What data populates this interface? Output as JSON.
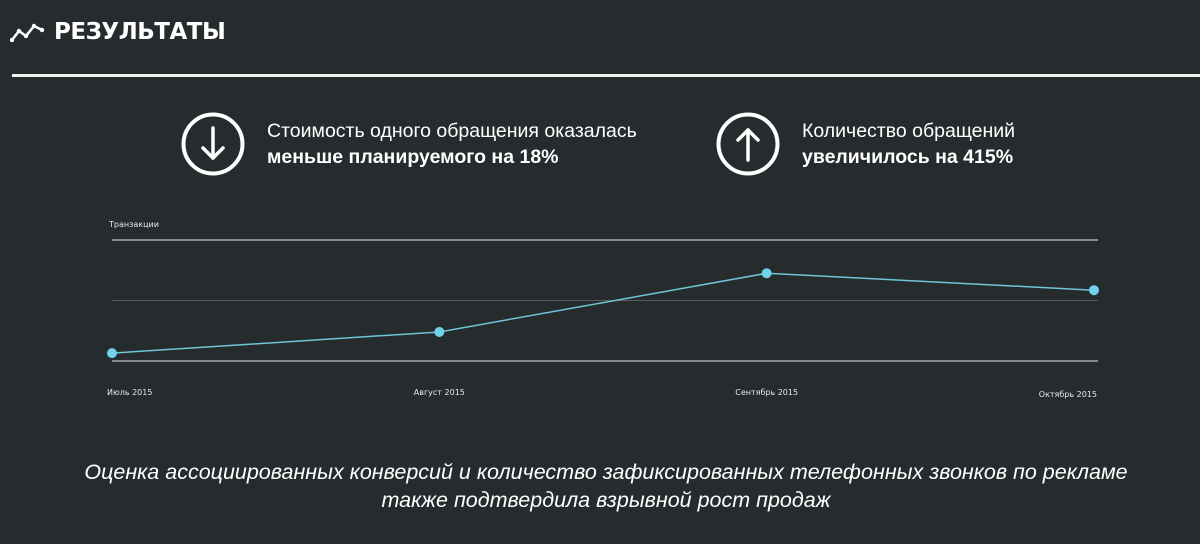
{
  "header": {
    "title": "РЕЗУЛЬТАТЫ",
    "icon": "trend-line-icon"
  },
  "stats": [
    {
      "icon": "arrow-down-circle-icon",
      "line1": "Стоимость одного обращения оказалась",
      "line2": "меньше планируемого на 18%"
    },
    {
      "icon": "arrow-up-circle-icon",
      "line1": "Количество обращений",
      "line2": "увеличилось на 415%"
    }
  ],
  "chart_data": {
    "type": "line",
    "ylabel": "Транзакции",
    "categories": [
      "Июль 2015",
      "Август 2015",
      "Сентябрь 2015",
      "Октябрь 2015"
    ],
    "series": [
      {
        "values": [
          0.13,
          0.48,
          1.45,
          1.17
        ]
      }
    ],
    "ylim": [
      0,
      2
    ],
    "grid": true,
    "colors": {
      "line": "#6fc6d9",
      "point": "#6fd3ea",
      "grid": "#ffffff"
    }
  },
  "footer": {
    "line1": "Оценка ассоциированных конверсий и количество зафиксированных телефонных звонков по рекламе",
    "line2": "также подтвердила взрывной рост продаж"
  }
}
